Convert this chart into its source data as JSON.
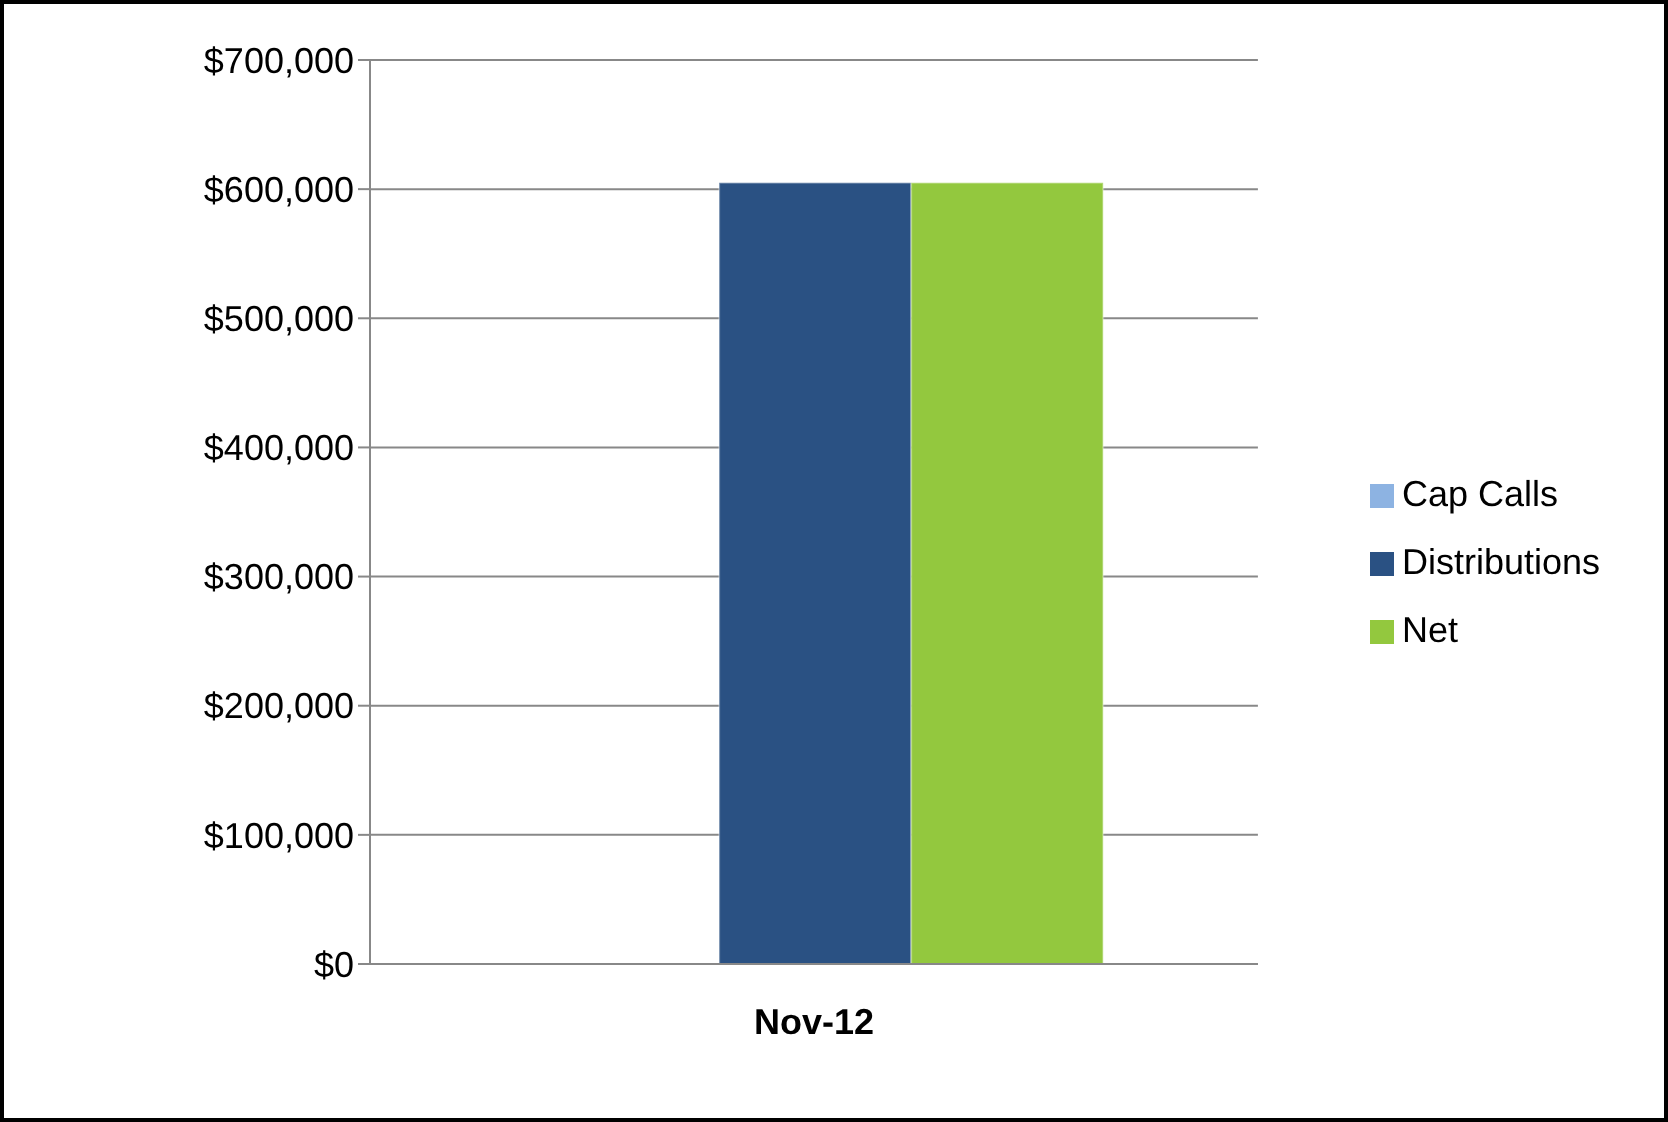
{
  "chart_data": {
    "type": "bar",
    "categories": [
      "Nov-12"
    ],
    "series": [
      {
        "name": "Cap Calls",
        "color": "#8db3e2",
        "values": [
          null
        ]
      },
      {
        "name": "Distributions",
        "color": "#2a5183",
        "values": [
          605000
        ]
      },
      {
        "name": "Net",
        "color": "#93c83e",
        "values": [
          605000
        ]
      }
    ],
    "ylim": [
      0,
      700000
    ],
    "yticks": [
      {
        "value": 0,
        "label": "$0"
      },
      {
        "value": 100000,
        "label": "$100,000"
      },
      {
        "value": 200000,
        "label": "$200,000"
      },
      {
        "value": 300000,
        "label": "$300,000"
      },
      {
        "value": 400000,
        "label": "$400,000"
      },
      {
        "value": 500000,
        "label": "$500,000"
      },
      {
        "value": 600000,
        "label": "$600,000"
      },
      {
        "value": 700000,
        "label": "$700,000"
      }
    ],
    "grid": "y",
    "legend": "right"
  }
}
